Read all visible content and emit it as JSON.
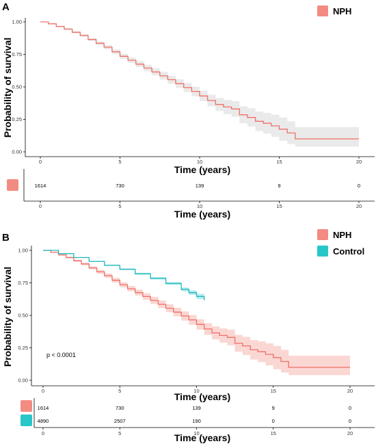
{
  "colors": {
    "nph": "#f28b82",
    "nph_line": "#ef6f66",
    "control": "#26c6c9",
    "control_line": "#1fb8bb",
    "band_grey": "#d9d9d9"
  },
  "chart_data": [
    {
      "panel": "A",
      "type": "line",
      "chart_kind": "kaplan-meier",
      "ylabel": "Probability of survival",
      "xlabel": "Time (years)",
      "xlim": [
        0,
        20
      ],
      "ylim": [
        0,
        1
      ],
      "x_ticks": [
        "0",
        "5",
        "10",
        "15",
        "20"
      ],
      "y_ticks": [
        "0.00",
        "0.25",
        "0.50",
        "0.75",
        "1.00"
      ],
      "legend": [
        {
          "name": "NPH",
          "color": "#f28b82"
        }
      ],
      "legend_position": "top-right",
      "series": [
        {
          "name": "NPH",
          "band": "grey",
          "x": [
            0,
            0.5,
            1,
            1.5,
            2,
            2.5,
            3,
            3.5,
            4,
            4.5,
            5,
            5.5,
            6,
            6.5,
            7,
            7.5,
            8,
            8.5,
            9,
            9.5,
            10,
            10.5,
            11,
            11.5,
            12,
            12.5,
            13,
            13.5,
            14,
            14.5,
            15,
            15.5,
            16,
            17,
            18,
            19,
            20
          ],
          "y": [
            1.0,
            0.985,
            0.965,
            0.945,
            0.92,
            0.895,
            0.865,
            0.835,
            0.805,
            0.77,
            0.735,
            0.705,
            0.675,
            0.645,
            0.615,
            0.585,
            0.555,
            0.525,
            0.495,
            0.465,
            0.43,
            0.395,
            0.365,
            0.345,
            0.33,
            0.285,
            0.265,
            0.235,
            0.22,
            0.2,
            0.175,
            0.145,
            0.1,
            0.1,
            0.1,
            0.1,
            0.1
          ],
          "lower": [
            1.0,
            0.982,
            0.96,
            0.938,
            0.912,
            0.885,
            0.853,
            0.82,
            0.788,
            0.752,
            0.715,
            0.684,
            0.652,
            0.62,
            0.588,
            0.556,
            0.524,
            0.492,
            0.46,
            0.428,
            0.39,
            0.35,
            0.315,
            0.29,
            0.27,
            0.22,
            0.195,
            0.16,
            0.14,
            0.115,
            0.085,
            0.06,
            0.04,
            0.04,
            0.04,
            0.04,
            0.04
          ],
          "upper": [
            1.0,
            0.988,
            0.97,
            0.952,
            0.928,
            0.905,
            0.877,
            0.85,
            0.822,
            0.788,
            0.755,
            0.726,
            0.698,
            0.67,
            0.642,
            0.614,
            0.586,
            0.558,
            0.53,
            0.502,
            0.47,
            0.44,
            0.415,
            0.4,
            0.39,
            0.35,
            0.335,
            0.31,
            0.3,
            0.285,
            0.265,
            0.235,
            0.19,
            0.19,
            0.19,
            0.19,
            0.19
          ]
        }
      ],
      "risk_table": {
        "rows": [
          {
            "name": "NPH",
            "color": "#f28b82",
            "values": [
              "1614",
              "730",
              "139",
              "9",
              "0"
            ]
          }
        ]
      }
    },
    {
      "panel": "B",
      "type": "line",
      "chart_kind": "kaplan-meier",
      "ylabel": "Probability of survival",
      "xlabel": "Time (years)",
      "xlim": [
        0,
        20
      ],
      "ylim": [
        0,
        1
      ],
      "x_ticks": [
        "0",
        "5",
        "10",
        "15",
        "20"
      ],
      "y_ticks": [
        "0.00",
        "0.25",
        "0.50",
        "0.75",
        "1.00"
      ],
      "annotation": "p < 0.0001",
      "legend": [
        {
          "name": "NPH",
          "color": "#f28b82"
        },
        {
          "name": "Control",
          "color": "#26c6c9"
        }
      ],
      "legend_position": "top-right",
      "series": [
        {
          "name": "NPH",
          "band": "nph",
          "x": [
            0,
            0.5,
            1,
            1.5,
            2,
            2.5,
            3,
            3.5,
            4,
            4.5,
            5,
            5.5,
            6,
            6.5,
            7,
            7.5,
            8,
            8.5,
            9,
            9.5,
            10,
            10.5,
            11,
            11.5,
            12,
            12.5,
            13,
            13.5,
            14,
            14.5,
            15,
            15.5,
            16,
            17,
            18,
            19,
            20
          ],
          "y": [
            1.0,
            0.985,
            0.965,
            0.945,
            0.92,
            0.895,
            0.865,
            0.835,
            0.805,
            0.77,
            0.735,
            0.705,
            0.675,
            0.645,
            0.615,
            0.585,
            0.555,
            0.525,
            0.495,
            0.465,
            0.43,
            0.395,
            0.365,
            0.345,
            0.33,
            0.285,
            0.265,
            0.235,
            0.22,
            0.2,
            0.175,
            0.145,
            0.1,
            0.1,
            0.1,
            0.1,
            0.1
          ],
          "lower": [
            1.0,
            0.982,
            0.96,
            0.938,
            0.912,
            0.885,
            0.853,
            0.82,
            0.788,
            0.752,
            0.715,
            0.684,
            0.652,
            0.62,
            0.588,
            0.556,
            0.524,
            0.492,
            0.46,
            0.428,
            0.39,
            0.35,
            0.315,
            0.29,
            0.27,
            0.22,
            0.195,
            0.16,
            0.14,
            0.115,
            0.085,
            0.06,
            0.04,
            0.04,
            0.04,
            0.04,
            0.04
          ],
          "upper": [
            1.0,
            0.988,
            0.97,
            0.952,
            0.928,
            0.905,
            0.877,
            0.85,
            0.822,
            0.788,
            0.755,
            0.726,
            0.698,
            0.67,
            0.642,
            0.614,
            0.586,
            0.558,
            0.53,
            0.502,
            0.47,
            0.44,
            0.415,
            0.4,
            0.39,
            0.35,
            0.335,
            0.31,
            0.3,
            0.285,
            0.265,
            0.235,
            0.19,
            0.19,
            0.19,
            0.19,
            0.19
          ]
        },
        {
          "name": "Control",
          "band": "control",
          "x": [
            0,
            1,
            2,
            3,
            4,
            5,
            6,
            7,
            8,
            9,
            9.5,
            10,
            10.5
          ],
          "y": [
            1.0,
            0.975,
            0.945,
            0.915,
            0.885,
            0.855,
            0.82,
            0.785,
            0.745,
            0.7,
            0.675,
            0.645,
            0.615
          ],
          "lower": [
            1.0,
            0.973,
            0.942,
            0.911,
            0.88,
            0.849,
            0.813,
            0.776,
            0.734,
            0.686,
            0.658,
            0.625,
            0.59
          ],
          "upper": [
            1.0,
            0.977,
            0.948,
            0.919,
            0.89,
            0.861,
            0.827,
            0.794,
            0.756,
            0.714,
            0.692,
            0.665,
            0.64
          ]
        }
      ],
      "risk_table": {
        "rows": [
          {
            "name": "NPH",
            "color": "#f28b82",
            "values": [
              "1614",
              "730",
              "139",
              "9",
              "0"
            ]
          },
          {
            "name": "Control",
            "color": "#26c6c9",
            "values": [
              "4890",
              "2507",
              "190",
              "0",
              "0"
            ]
          }
        ]
      }
    }
  ]
}
